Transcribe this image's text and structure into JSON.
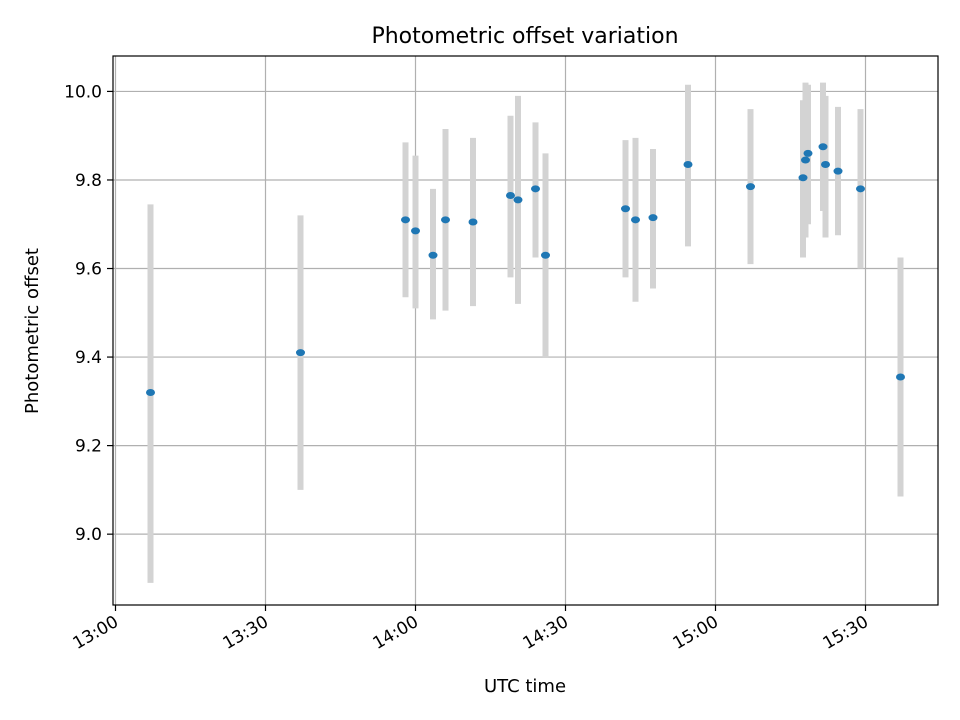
{
  "chart_data": {
    "type": "scatter",
    "title": "Photometric offset variation",
    "xlabel": "UTC time",
    "ylabel": "Photometric offset",
    "x_axis_kind": "time",
    "xlim": [
      "12:59:30",
      "15:44:30"
    ],
    "ylim": [
      8.84,
      10.08
    ],
    "x_ticks": [
      "13:00",
      "13:30",
      "14:00",
      "14:30",
      "15:00",
      "15:30"
    ],
    "y_ticks": [
      "9.0",
      "9.2",
      "9.4",
      "9.6",
      "9.8",
      "10.0"
    ],
    "grid": true,
    "marker_color": "#1f77b4",
    "errorbar_color": "#d3d3d3",
    "points": [
      {
        "time": "13:07",
        "y": 9.32,
        "ylo": 8.89,
        "yhi": 9.745
      },
      {
        "time": "13:37",
        "y": 9.41,
        "ylo": 9.1,
        "yhi": 9.72
      },
      {
        "time": "13:58",
        "y": 9.71,
        "ylo": 9.535,
        "yhi": 9.885
      },
      {
        "time": "14:00",
        "y": 9.685,
        "ylo": 9.51,
        "yhi": 9.855
      },
      {
        "time": "14:03:30",
        "y": 9.63,
        "ylo": 9.485,
        "yhi": 9.78
      },
      {
        "time": "14:06",
        "y": 9.71,
        "ylo": 9.505,
        "yhi": 9.915
      },
      {
        "time": "14:11:30",
        "y": 9.705,
        "ylo": 9.515,
        "yhi": 9.895
      },
      {
        "time": "14:19",
        "y": 9.765,
        "ylo": 9.58,
        "yhi": 9.945
      },
      {
        "time": "14:20:30",
        "y": 9.755,
        "ylo": 9.52,
        "yhi": 9.99
      },
      {
        "time": "14:24",
        "y": 9.78,
        "ylo": 9.625,
        "yhi": 9.93
      },
      {
        "time": "14:26",
        "y": 9.63,
        "ylo": 9.4,
        "yhi": 9.86
      },
      {
        "time": "14:42",
        "y": 9.735,
        "ylo": 9.58,
        "yhi": 9.89
      },
      {
        "time": "14:44",
        "y": 9.71,
        "ylo": 9.525,
        "yhi": 9.895
      },
      {
        "time": "14:47:30",
        "y": 9.715,
        "ylo": 9.555,
        "yhi": 9.87
      },
      {
        "time": "14:54:30",
        "y": 9.835,
        "ylo": 9.65,
        "yhi": 10.015
      },
      {
        "time": "15:07",
        "y": 9.785,
        "ylo": 9.61,
        "yhi": 9.96
      },
      {
        "time": "15:17:30",
        "y": 9.805,
        "ylo": 9.625,
        "yhi": 9.98
      },
      {
        "time": "15:18",
        "y": 9.845,
        "ylo": 9.67,
        "yhi": 10.02
      },
      {
        "time": "15:18:30",
        "y": 9.86,
        "ylo": 9.7,
        "yhi": 10.015
      },
      {
        "time": "15:21:30",
        "y": 9.875,
        "ylo": 9.73,
        "yhi": 10.02
      },
      {
        "time": "15:22",
        "y": 9.835,
        "ylo": 9.67,
        "yhi": 9.99
      },
      {
        "time": "15:24:30",
        "y": 9.82,
        "ylo": 9.675,
        "yhi": 9.965
      },
      {
        "time": "15:29",
        "y": 9.78,
        "ylo": 9.6,
        "yhi": 9.96
      },
      {
        "time": "15:37",
        "y": 9.355,
        "ylo": 9.085,
        "yhi": 9.625
      }
    ]
  }
}
